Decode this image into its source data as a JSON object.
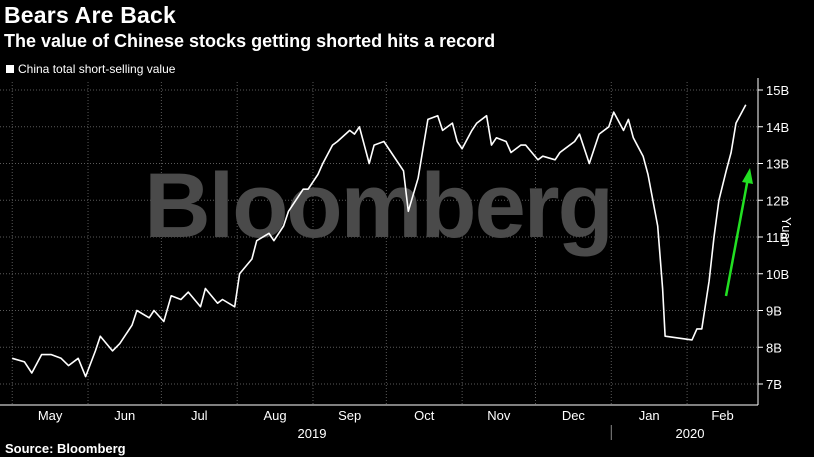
{
  "header": {
    "title": "Bears Are Back",
    "subtitle": "The value of Chinese stocks getting shorted hits a record"
  },
  "legend": {
    "label": "China total short-selling value",
    "color": "#ffffff"
  },
  "watermark": "Bloomberg",
  "source": "Source: Bloomberg",
  "colors": {
    "background": "#000000",
    "line": "#ffffff",
    "arrow": "#22e022",
    "grid": "#5a5a5a",
    "watermark": "#4a4a4a"
  },
  "chart_data": {
    "type": "line",
    "title": "Bears Are Back",
    "subtitle": "The value of Chinese stocks getting shorted hits a record",
    "xlabel": "",
    "ylabel": "Yuan",
    "ylim": [
      6.5,
      15.2
    ],
    "y_ticks": [
      "7B",
      "8B",
      "9B",
      "10B",
      "11B",
      "12B",
      "13B",
      "14B",
      "15B"
    ],
    "x_ticks": [
      "May",
      "Jun",
      "Jul",
      "Aug",
      "Sep",
      "Oct",
      "Nov",
      "Dec",
      "Jan",
      "Feb"
    ],
    "x_year_labels": [
      "2019",
      "2020"
    ],
    "grid": true,
    "legend_position": "top-left",
    "annotations": [
      "green upward arrow near Feb indicating rebound"
    ],
    "series": [
      {
        "name": "China total short-selling value",
        "unit": "billion yuan",
        "points": [
          [
            "2019-05-01",
            7.7
          ],
          [
            "2019-05-06",
            7.6
          ],
          [
            "2019-05-09",
            7.3
          ],
          [
            "2019-05-13",
            7.8
          ],
          [
            "2019-05-17",
            7.8
          ],
          [
            "2019-05-21",
            7.7
          ],
          [
            "2019-05-24",
            7.5
          ],
          [
            "2019-05-28",
            7.7
          ],
          [
            "2019-05-31",
            7.2
          ],
          [
            "2019-06-04",
            7.9
          ],
          [
            "2019-06-06",
            8.3
          ],
          [
            "2019-06-11",
            7.9
          ],
          [
            "2019-06-14",
            8.1
          ],
          [
            "2019-06-19",
            8.6
          ],
          [
            "2019-06-21",
            9.0
          ],
          [
            "2019-06-26",
            8.8
          ],
          [
            "2019-06-28",
            9.0
          ],
          [
            "2019-07-02",
            8.7
          ],
          [
            "2019-07-05",
            9.4
          ],
          [
            "2019-07-09",
            9.3
          ],
          [
            "2019-07-12",
            9.5
          ],
          [
            "2019-07-17",
            9.1
          ],
          [
            "2019-07-19",
            9.6
          ],
          [
            "2019-07-24",
            9.2
          ],
          [
            "2019-07-26",
            9.3
          ],
          [
            "2019-07-31",
            9.1
          ],
          [
            "2019-08-02",
            10.0
          ],
          [
            "2019-08-07",
            10.4
          ],
          [
            "2019-08-09",
            10.9
          ],
          [
            "2019-08-14",
            11.1
          ],
          [
            "2019-08-16",
            10.9
          ],
          [
            "2019-08-20",
            11.3
          ],
          [
            "2019-08-22",
            11.7
          ],
          [
            "2019-08-26",
            12.1
          ],
          [
            "2019-08-28",
            12.3
          ],
          [
            "2019-08-30",
            12.3
          ],
          [
            "2019-09-03",
            12.7
          ],
          [
            "2019-09-05",
            13.0
          ],
          [
            "2019-09-09",
            13.5
          ],
          [
            "2019-09-11",
            13.6
          ],
          [
            "2019-09-16",
            13.9
          ],
          [
            "2019-09-18",
            13.8
          ],
          [
            "2019-09-20",
            14.0
          ],
          [
            "2019-09-24",
            13.0
          ],
          [
            "2019-09-26",
            13.5
          ],
          [
            "2019-09-30",
            13.6
          ],
          [
            "2019-10-08",
            12.8
          ],
          [
            "2019-10-10",
            11.7
          ],
          [
            "2019-10-14",
            12.6
          ],
          [
            "2019-10-16",
            13.4
          ],
          [
            "2019-10-18",
            14.2
          ],
          [
            "2019-10-22",
            14.3
          ],
          [
            "2019-10-24",
            13.9
          ],
          [
            "2019-10-28",
            14.1
          ],
          [
            "2019-10-30",
            13.6
          ],
          [
            "2019-11-01",
            13.4
          ],
          [
            "2019-11-05",
            13.9
          ],
          [
            "2019-11-07",
            14.1
          ],
          [
            "2019-11-11",
            14.3
          ],
          [
            "2019-11-13",
            13.5
          ],
          [
            "2019-11-15",
            13.7
          ],
          [
            "2019-11-19",
            13.6
          ],
          [
            "2019-11-21",
            13.3
          ],
          [
            "2019-11-25",
            13.5
          ],
          [
            "2019-11-27",
            13.5
          ],
          [
            "2019-12-02",
            13.1
          ],
          [
            "2019-12-04",
            13.2
          ],
          [
            "2019-12-09",
            13.1
          ],
          [
            "2019-12-11",
            13.3
          ],
          [
            "2019-12-13",
            13.4
          ],
          [
            "2019-12-17",
            13.6
          ],
          [
            "2019-12-19",
            13.8
          ],
          [
            "2019-12-23",
            13.0
          ],
          [
            "2019-12-25",
            13.4
          ],
          [
            "2019-12-27",
            13.8
          ],
          [
            "2019-12-31",
            14.0
          ],
          [
            "2020-01-02",
            14.4
          ],
          [
            "2020-01-06",
            13.9
          ],
          [
            "2020-01-08",
            14.2
          ],
          [
            "2020-01-10",
            13.7
          ],
          [
            "2020-01-14",
            13.2
          ],
          [
            "2020-01-16",
            12.7
          ],
          [
            "2020-01-20",
            11.3
          ],
          [
            "2020-01-22",
            9.6
          ],
          [
            "2020-01-23",
            8.3
          ],
          [
            "2020-02-03",
            8.2
          ],
          [
            "2020-02-05",
            8.5
          ],
          [
            "2020-02-07",
            8.5
          ],
          [
            "2020-02-10",
            9.8
          ],
          [
            "2020-02-12",
            11.0
          ],
          [
            "2020-02-14",
            12.0
          ],
          [
            "2020-02-17",
            12.8
          ],
          [
            "2020-02-19",
            13.3
          ],
          [
            "2020-02-21",
            14.1
          ],
          [
            "2020-02-25",
            14.6
          ]
        ]
      }
    ]
  }
}
